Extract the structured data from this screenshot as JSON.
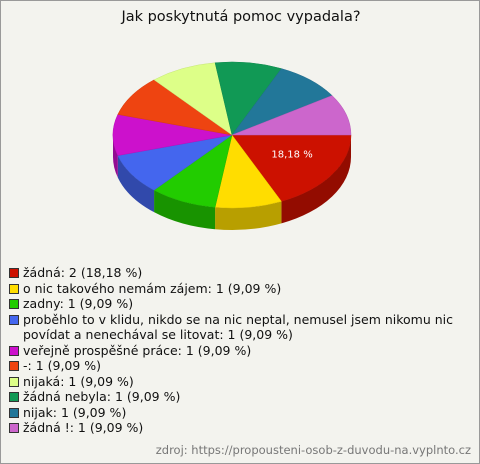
{
  "chart_data": {
    "type": "pie",
    "title": "Jak poskytnutá pomoc vypadala?",
    "categories": [
      "žádná: 2 (18,18 %)",
      "o nic takového nemám zájem: 1 (9,09 %)",
      "zadny: 1 (9,09 %)",
      "proběhlo to v klidu, nikdo se na nic neptal, nemusel jsem nikomu nic povídat a nenechával se litovat: 1 (9,09 %)",
      "veřejně prospěšné práce: 1 (9,09 %)",
      "-: 1 (9,09 %)",
      "nijaká: 1 (9,09 %)",
      "žádná nebyla: 1 (9,09 %)",
      "nijak: 1 (9,09 %)",
      "žádná !: 1 (9,09 %)"
    ],
    "values": [
      18.18,
      9.09,
      9.09,
      9.09,
      9.09,
      9.09,
      9.09,
      9.09,
      9.09,
      9.09
    ],
    "value_labels": [
      "18,18 %",
      null,
      null,
      null,
      null,
      null,
      null,
      null,
      null,
      null
    ],
    "colors": [
      "#cc1100",
      "#ffdd00",
      "#22cc00",
      "#4466ee",
      "#cc11cc",
      "#ee4411",
      "#ddff88",
      "#119955",
      "#227799",
      "#cc66cc"
    ],
    "source": "zdroj: https://propousteni-osob-z-duvodu-na.vyplnto.cz"
  }
}
